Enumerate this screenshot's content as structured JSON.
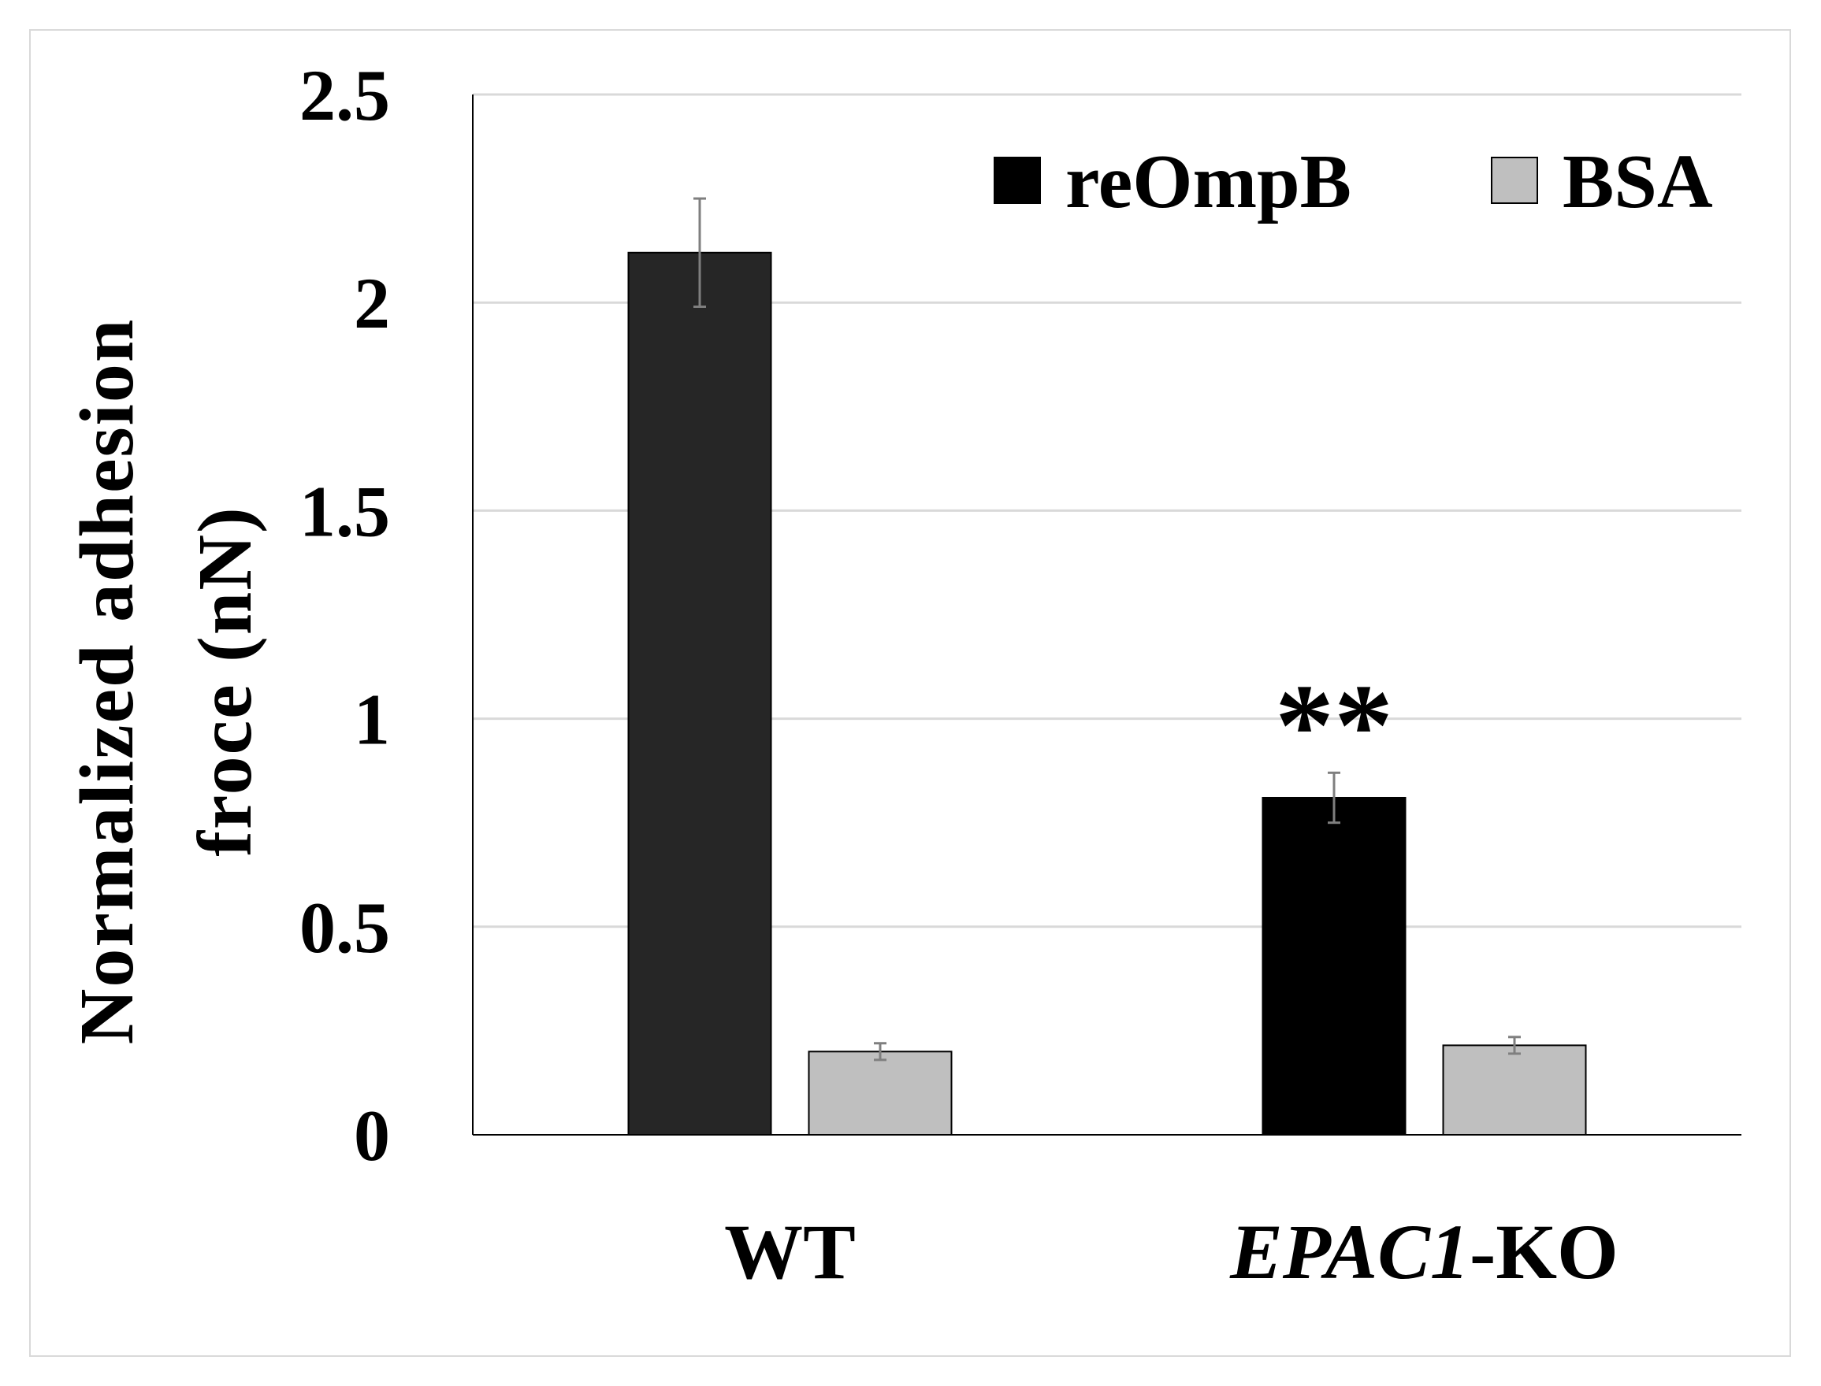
{
  "chart_data": {
    "type": "bar",
    "title": "",
    "xlabel": "",
    "ylabel_lines": [
      "Normalized adhesion",
      "froce (nN)"
    ],
    "categories": [
      {
        "prefix": "",
        "italic": "",
        "suffix": "WT"
      },
      {
        "prefix": "",
        "italic": "EPAC1",
        "suffix": "-KO"
      }
    ],
    "ylim": [
      0,
      2.5
    ],
    "yticks": [
      "0",
      "0.5",
      "1",
      "1.5",
      "2",
      "2.5"
    ],
    "grid": true,
    "legend_position": "top-right",
    "series": [
      {
        "name": "reOmpB",
        "values": [
          2.12,
          0.81
        ],
        "errors": [
          0.13,
          0.06
        ],
        "colors": [
          "#262626",
          "#000000"
        ]
      },
      {
        "name": "BSA",
        "values": [
          0.2,
          0.215
        ],
        "errors": [
          0.02,
          0.02
        ],
        "colors": [
          "#bfbfbf",
          "#bfbfbf"
        ]
      }
    ],
    "annotations": [
      {
        "text": "**",
        "category_index": 1,
        "series_index": 0
      }
    ]
  }
}
